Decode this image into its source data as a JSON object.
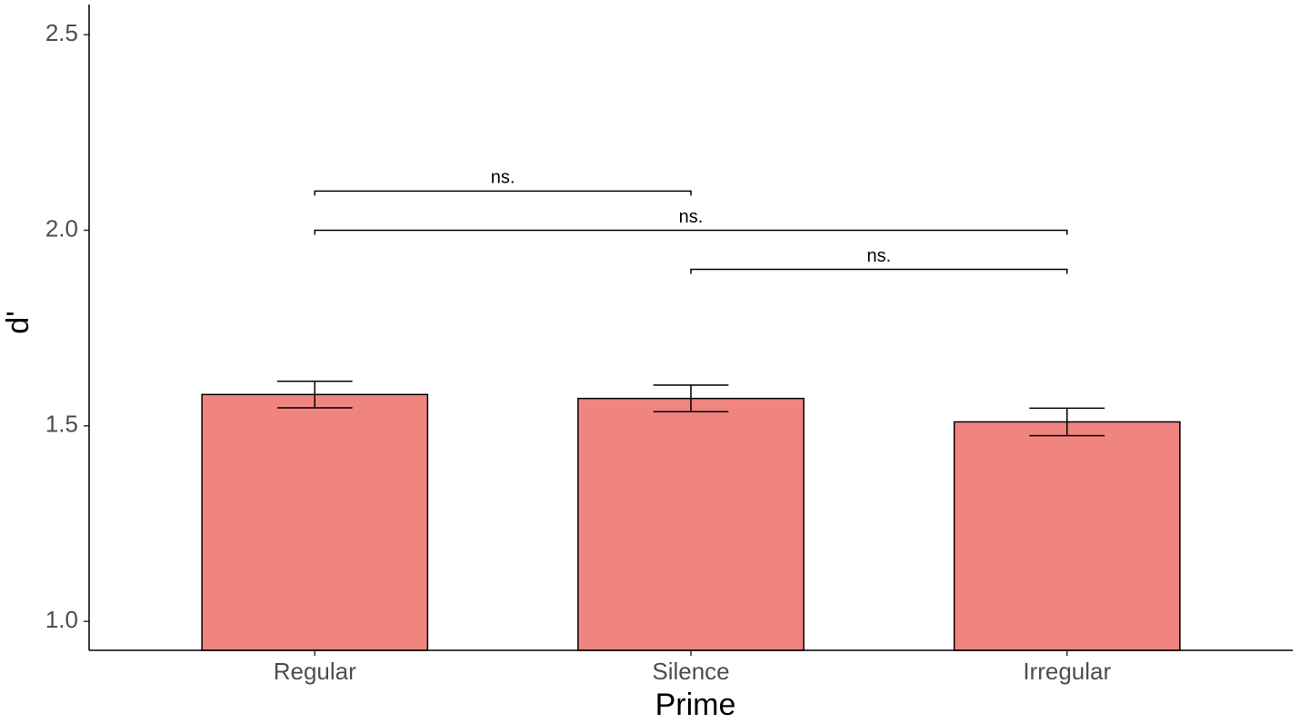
{
  "chart_data": {
    "type": "bar",
    "x_label": "Prime",
    "y_label": "d'",
    "categories": [
      "Regular",
      "Silence",
      "Irregular"
    ],
    "values": [
      1.58,
      1.57,
      1.51
    ],
    "errors": [
      0.034,
      0.034,
      0.035
    ],
    "color": "#f08580",
    "ylim": [
      0.926,
      2.577
    ],
    "yticks": [
      {
        "value": 1,
        "label": "1.0"
      },
      1.5,
      {
        "value": 2,
        "label": "2.0"
      },
      2.5
    ],
    "annotations": [
      {
        "label": "ns.",
        "from": 0,
        "to": 1,
        "y": 2.1
      },
      {
        "label": "ns.",
        "from": 0,
        "to": 2,
        "y": 2.0
      },
      {
        "label": "ns.",
        "from": 1,
        "to": 2,
        "y": 1.9
      }
    ]
  }
}
